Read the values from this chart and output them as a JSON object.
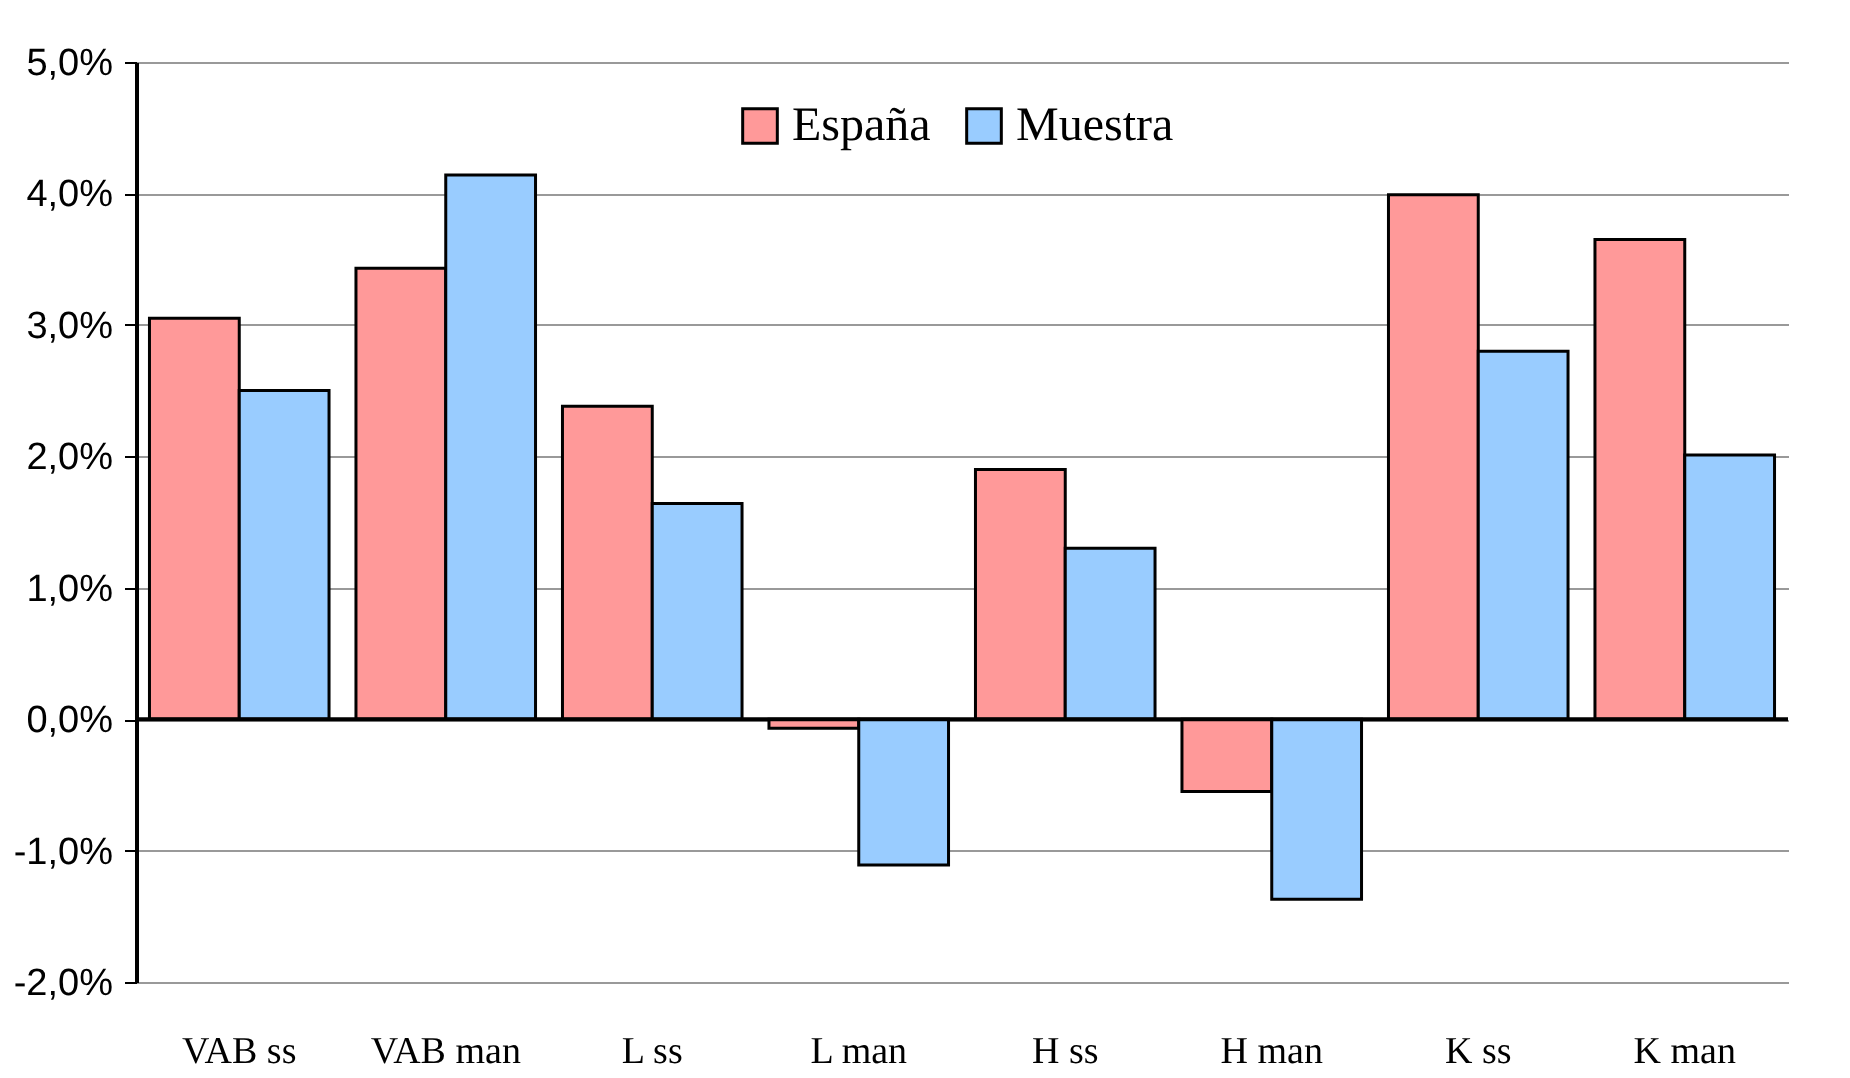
{
  "chart_data": {
    "type": "bar",
    "categories": [
      "VAB ss",
      "VAB man",
      "L ss",
      "L man",
      "H ss",
      "H man",
      "K ss",
      "K man"
    ],
    "series": [
      {
        "name": "España",
        "color": "#ff9999",
        "values": [
          3.05,
          3.43,
          2.38,
          -0.07,
          1.9,
          -0.55,
          3.99,
          3.65
        ]
      },
      {
        "name": "Muestra",
        "color": "#99ccff",
        "values": [
          2.5,
          4.14,
          1.64,
          -1.11,
          1.3,
          -1.37,
          2.8,
          2.01
        ]
      }
    ],
    "ylim": [
      -2,
      5
    ],
    "yticks": [
      {
        "value": -2,
        "label": "-2,0%"
      },
      {
        "value": -1,
        "label": "-1,0%"
      },
      {
        "value": 0,
        "label": "0,0%"
      },
      {
        "value": 1,
        "label": "1,0%"
      },
      {
        "value": 2,
        "label": "2,0%"
      },
      {
        "value": 3,
        "label": "3,0%"
      },
      {
        "value": 4,
        "label": "4,0%"
      },
      {
        "value": 5,
        "label": "5,0%"
      }
    ],
    "grid": "y",
    "legend": "top"
  }
}
